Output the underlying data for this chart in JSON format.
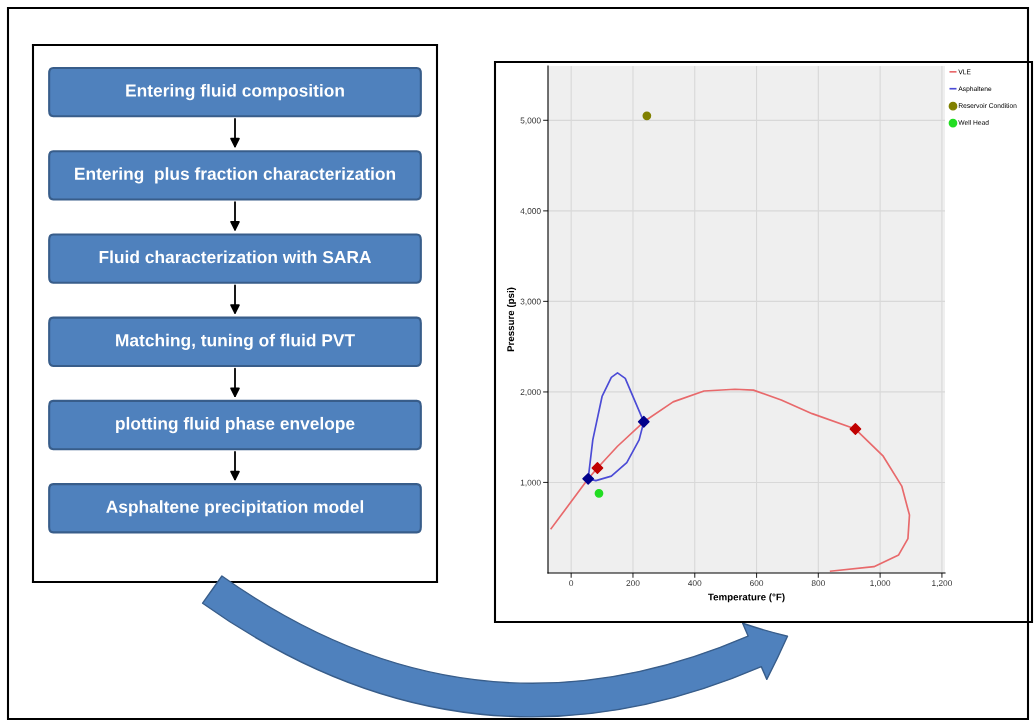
{
  "chart_data": [
    {
      "type": "other",
      "annotations": [
        "Entering fluid composition",
        "Entering  plus fraction characterization",
        "Fluid characterization with SARA",
        "Matching, tuning of fluid PVT",
        "plotting fluid phase envelope",
        "Asphaltene precipitation model"
      ]
    },
    {
      "type": "line",
      "xlabel": "Temperature (°F)",
      "ylabel": "Pressure (psi)",
      "xlim": [
        -75,
        1210
      ],
      "ylim": [
        0,
        5600
      ],
      "xticks": [
        0,
        200,
        400,
        600,
        800,
        {
          "value": 1000,
          "label": "1,000"
        },
        {
          "value": 1200,
          "label": "1,200"
        }
      ],
      "yticks": [
        {
          "value": 1000,
          "label": "1,000"
        },
        {
          "value": 2000,
          "label": "2,000"
        },
        {
          "value": 3000,
          "label": "3,000"
        },
        {
          "value": 4000,
          "label": "4,000"
        },
        {
          "value": 5000,
          "label": "5,000"
        }
      ],
      "grid": true,
      "legend": "top right",
      "marker": "none",
      "line_style": "solid",
      "series": [
        {
          "name": "VLE",
          "color": "#e8696b",
          "x": [
            -65,
            55,
            85,
            150,
            235,
            330,
            430,
            530,
            590,
            680,
            780,
            920,
            1010,
            1070,
            1095,
            1090,
            1060,
            980,
            840
          ],
          "values": [
            490,
            1040,
            1160,
            1400,
            1670,
            1890,
            2010,
            2030,
            2020,
            1910,
            1760,
            1590,
            1290,
            960,
            640,
            380,
            200,
            70,
            20
          ]
        },
        {
          "name": "Asphaltene",
          "color": "#4b4bd6",
          "x": [
            55,
            70,
            100,
            130,
            150,
            175,
            205,
            235
          ],
          "values": [
            1040,
            1470,
            1950,
            2160,
            2210,
            2150,
            1910,
            1670
          ]
        },
        {
          "color": "#4b4bd6",
          "x": [
            55,
            80,
            130,
            180,
            220,
            235
          ],
          "values": [
            1040,
            1020,
            1070,
            1220,
            1470,
            1670
          ]
        },
        {
          "type": "scatter",
          "marker": "diamond",
          "color": "#c00000",
          "x": [
            85,
            920
          ],
          "values": [
            1160,
            1590
          ]
        },
        {
          "type": "scatter",
          "marker": "diamond",
          "color": "#00008b",
          "x": [
            55,
            235
          ],
          "values": [
            1040,
            1670
          ]
        },
        {
          "name": "Reservoir Condition",
          "type": "scatter",
          "marker": "circle",
          "color": "#808000",
          "x": [
            245
          ],
          "values": [
            5050
          ]
        },
        {
          "name": "Well Head",
          "type": "scatter",
          "marker": "circle",
          "color": "#22dd22",
          "x": [
            90
          ],
          "values": [
            880
          ]
        }
      ]
    }
  ]
}
